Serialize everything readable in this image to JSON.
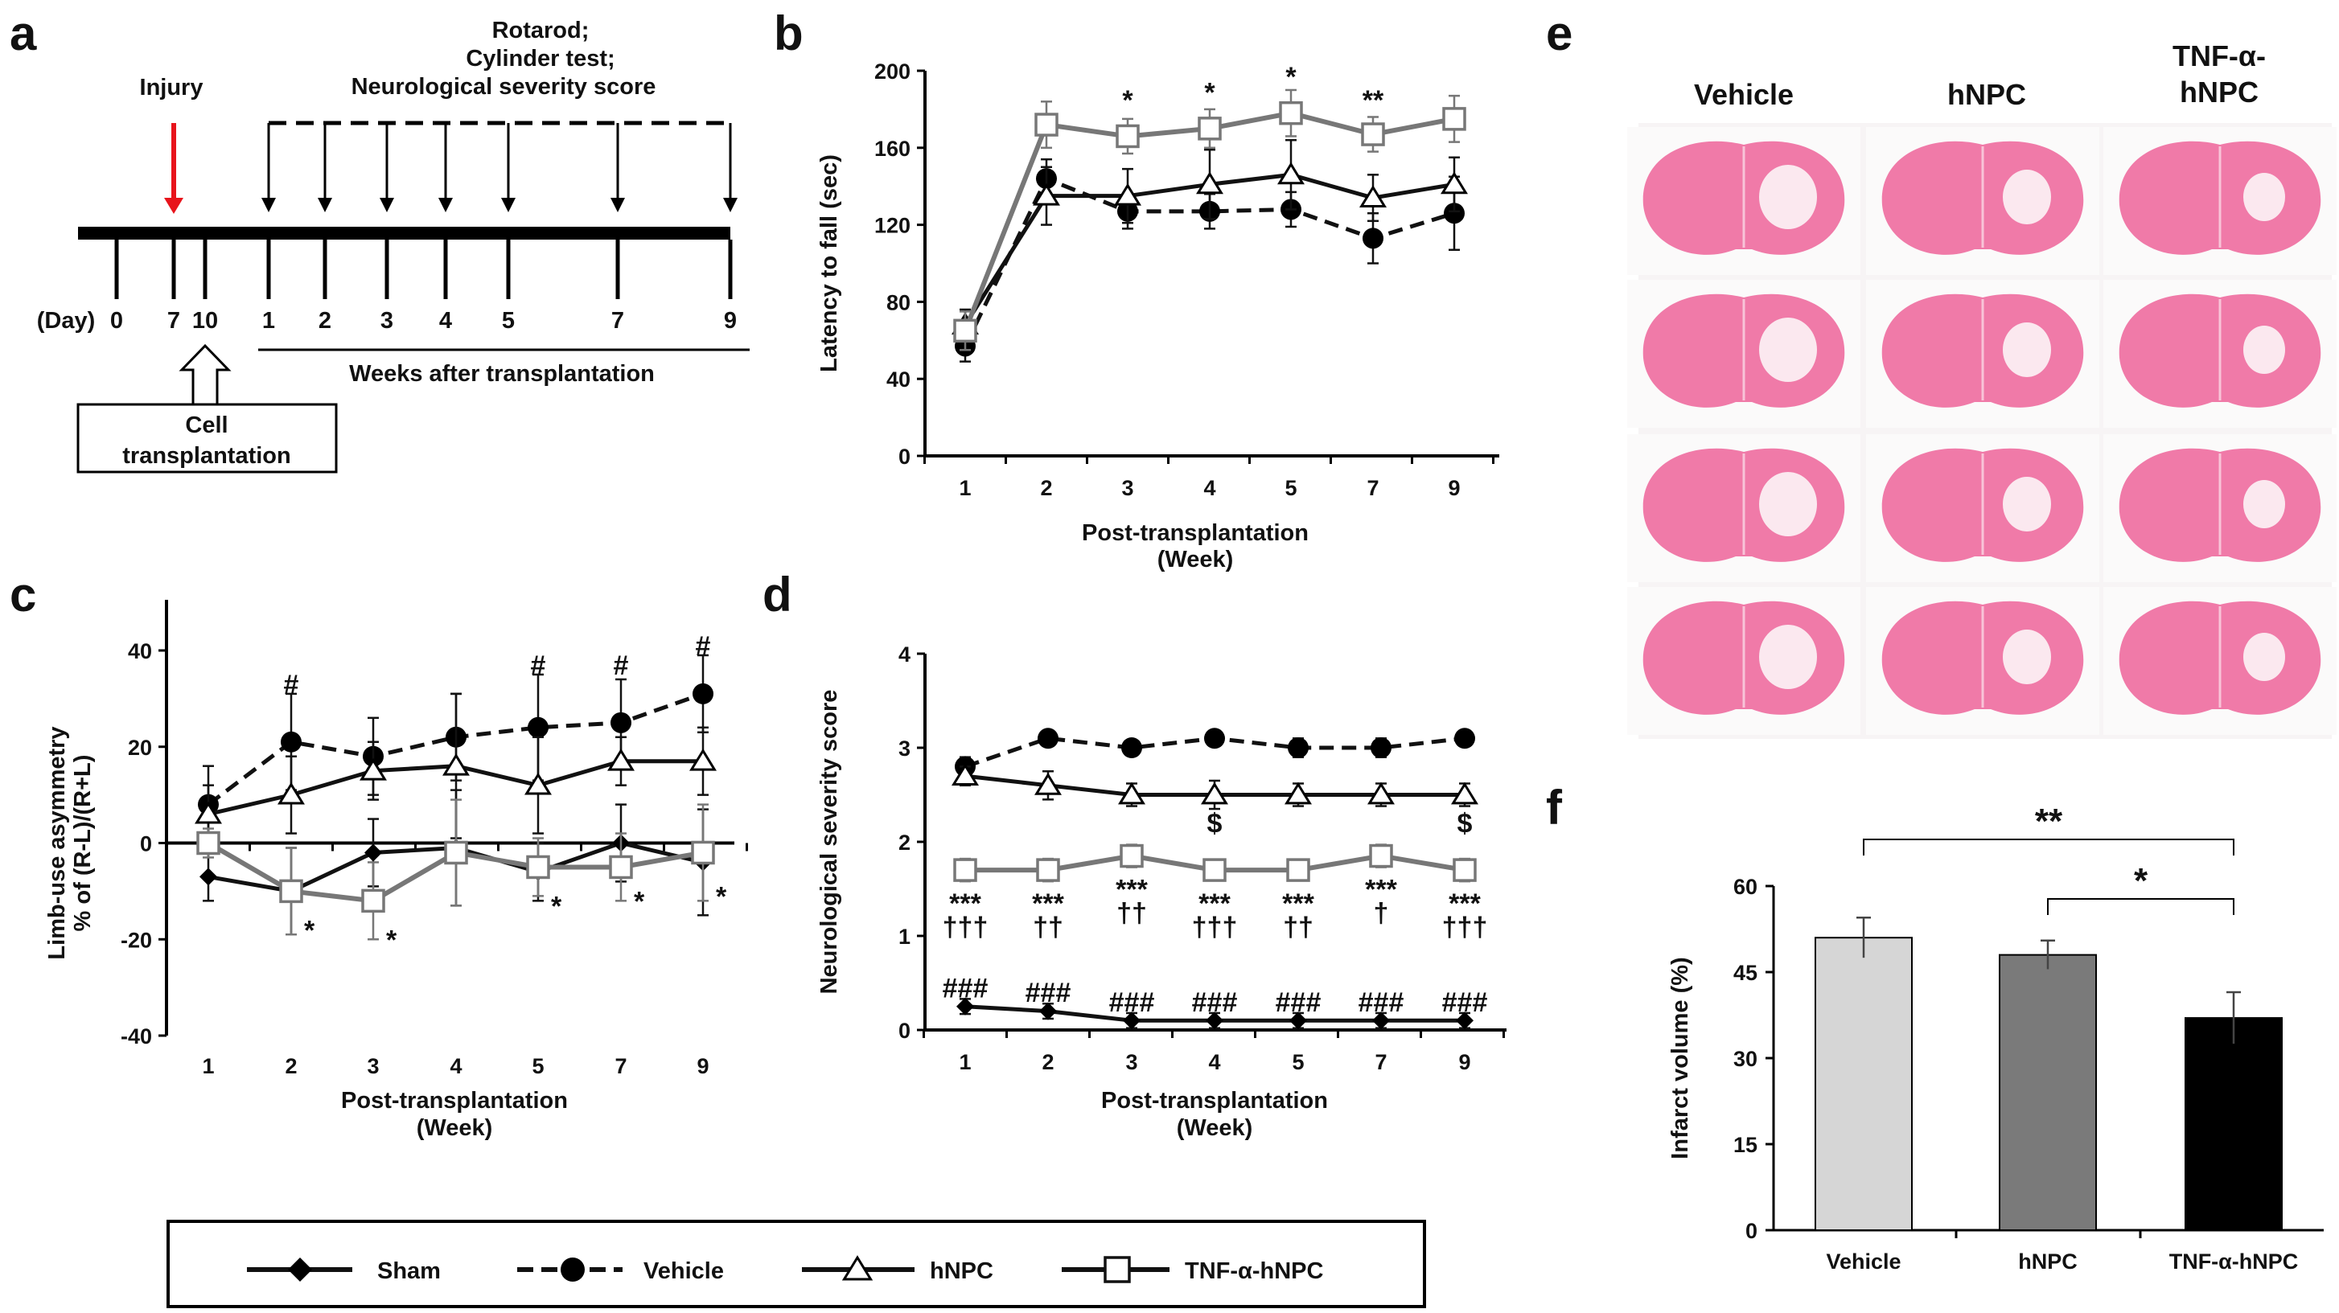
{
  "panel_labels": {
    "a": "a",
    "b": "b",
    "c": "c",
    "d": "d",
    "e": "e",
    "f": "f"
  },
  "timeline": {
    "injury": "Injury",
    "tests": [
      "Rotarod;",
      "Cylinder test;",
      "Neurological severity score"
    ],
    "day_label": "(Day)",
    "days": [
      "0",
      "7",
      "10"
    ],
    "weeks": [
      "1",
      "2",
      "3",
      "4",
      "5",
      "7",
      "9"
    ],
    "weeks_caption": "Weeks after transplantation",
    "cell_box": [
      "Cell",
      "transplantation"
    ],
    "colors": {
      "injury_arrow": "#e8141c"
    }
  },
  "legend": [
    {
      "name": "Sham",
      "marker": "diamond-filled",
      "dash": false,
      "color": "#111111"
    },
    {
      "name": "Vehicle",
      "marker": "circle-filled",
      "dash": true,
      "color": "#111111"
    },
    {
      "name": "hNPC",
      "marker": "triangle-open",
      "dash": false,
      "color": "#111111"
    },
    {
      "name": "TNF-α-hNPC",
      "marker": "square-open",
      "dash": false,
      "color": "#777777"
    }
  ],
  "histology": {
    "columns": [
      "Vehicle",
      "hNPC"
    ],
    "column3": [
      "TNF-α-",
      "hNPC"
    ],
    "rows": 4,
    "tissue_color": "#f07aa8"
  },
  "chart_data": [
    {
      "id": "b",
      "type": "line",
      "categories": [
        "1",
        "2",
        "3",
        "4",
        "5",
        "7",
        "9"
      ],
      "ylabel": "Latency to fall (sec)",
      "xlabel": [
        "Post-transplantation",
        "(Week)"
      ],
      "ylim": [
        0,
        200
      ],
      "yticks": [
        0,
        40,
        80,
        120,
        160,
        200
      ],
      "series": [
        {
          "name": "Vehicle",
          "values": [
            57,
            144,
            127,
            127,
            128,
            113,
            126
          ],
          "errors": [
            8,
            10,
            9,
            9,
            9,
            13,
            19
          ]
        },
        {
          "name": "hNPC",
          "values": [
            68,
            135,
            135,
            141,
            146,
            134,
            141
          ],
          "errors": [
            8,
            15,
            14,
            18,
            18,
            12,
            14
          ]
        },
        {
          "name": "TNF-α-hNPC",
          "values": [
            65,
            172,
            166,
            170,
            178,
            167,
            175
          ],
          "errors": [
            10,
            12,
            9,
            10,
            12,
            9,
            12
          ]
        }
      ],
      "annotations": [
        {
          "x": "3",
          "y": 185,
          "text": "*"
        },
        {
          "x": "4",
          "y": 189,
          "text": "*"
        },
        {
          "x": "5",
          "y": 197,
          "text": "*"
        },
        {
          "x": "7",
          "y": 185,
          "text": "**"
        }
      ]
    },
    {
      "id": "c",
      "type": "line",
      "categories": [
        "1",
        "2",
        "3",
        "4",
        "5",
        "7",
        "9"
      ],
      "ylabel": [
        "Limb-use asymmetry",
        "% of (R-L)/(R+L)"
      ],
      "xlabel": [
        "Post-transplantation",
        "(Week)"
      ],
      "ylim": [
        -40,
        40
      ],
      "yticks": [
        -40,
        -20,
        0,
        20,
        40
      ],
      "series": [
        {
          "name": "Sham",
          "values": [
            -7,
            -10,
            -2,
            -1,
            -6,
            0,
            -4
          ],
          "errors": [
            5,
            9,
            7,
            12,
            6,
            8,
            11
          ]
        },
        {
          "name": "Vehicle",
          "values": [
            8,
            21,
            18,
            22,
            24,
            25,
            31
          ],
          "errors": [
            8,
            10,
            8,
            9,
            11,
            9,
            8
          ]
        },
        {
          "name": "hNPC",
          "values": [
            6,
            10,
            15,
            16,
            12,
            17,
            17
          ],
          "errors": [
            6,
            8,
            6,
            15,
            10,
            5,
            7
          ]
        },
        {
          "name": "TNF-α-hNPC",
          "values": [
            0,
            -10,
            -12,
            -2,
            -5,
            -5,
            -2
          ],
          "errors": [
            3,
            9,
            8,
            11,
            6,
            7,
            10
          ]
        }
      ],
      "annotations": [
        {
          "x": "2",
          "y": 33,
          "text": "#"
        },
        {
          "x": "5",
          "y": 37,
          "text": "#"
        },
        {
          "x": "7",
          "y": 37,
          "text": "#"
        },
        {
          "x": "9",
          "y": 41,
          "text": "#"
        },
        {
          "x": "2",
          "y": -18,
          "text": "*",
          "dx": 0.22
        },
        {
          "x": "3",
          "y": -20,
          "text": "*",
          "dx": 0.22
        },
        {
          "x": "5",
          "y": -13,
          "text": "*",
          "dx": 0.22
        },
        {
          "x": "7",
          "y": -12,
          "text": "*",
          "dx": 0.22
        },
        {
          "x": "9",
          "y": -11,
          "text": "*",
          "dx": 0.22
        }
      ]
    },
    {
      "id": "d",
      "type": "line",
      "categories": [
        "1",
        "2",
        "3",
        "4",
        "5",
        "7",
        "9"
      ],
      "ylabel": "Neurological severity score",
      "xlabel": [
        "Post-transplantation",
        "(Week)"
      ],
      "ylim": [
        0,
        4
      ],
      "yticks": [
        0,
        1,
        2,
        3,
        4
      ],
      "series": [
        {
          "name": "Sham",
          "values": [
            0.25,
            0.2,
            0.1,
            0.1,
            0.1,
            0.1,
            0.1
          ],
          "errors": [
            0.08,
            0.08,
            0.08,
            0.08,
            0.08,
            0.08,
            0.08
          ]
        },
        {
          "name": "Vehicle",
          "values": [
            2.8,
            3.1,
            3.0,
            3.1,
            3.0,
            3.0,
            3.1
          ],
          "errors": [
            0.1,
            0.07,
            0.05,
            0.07,
            0.1,
            0.1,
            0.05
          ]
        },
        {
          "name": "hNPC",
          "values": [
            2.7,
            2.6,
            2.5,
            2.5,
            2.5,
            2.5,
            2.5
          ],
          "errors": [
            0.1,
            0.15,
            0.12,
            0.15,
            0.12,
            0.12,
            0.12
          ]
        },
        {
          "name": "TNF-α-hNPC",
          "values": [
            1.7,
            1.7,
            1.85,
            1.7,
            1.7,
            1.85,
            1.7
          ],
          "errors": [
            0.12,
            0.12,
            0.12,
            0.1,
            0.1,
            0.12,
            0.12
          ]
        }
      ],
      "annotations": [
        {
          "x": "1",
          "y": 1.35,
          "text": "***"
        },
        {
          "x": "2",
          "y": 1.35,
          "text": "***"
        },
        {
          "x": "3",
          "y": 1.5,
          "text": "***"
        },
        {
          "x": "4",
          "y": 1.35,
          "text": "***"
        },
        {
          "x": "5",
          "y": 1.35,
          "text": "***"
        },
        {
          "x": "7",
          "y": 1.5,
          "text": "***"
        },
        {
          "x": "9",
          "y": 1.35,
          "text": "***"
        },
        {
          "x": "1",
          "y": 1.1,
          "text": "†††"
        },
        {
          "x": "2",
          "y": 1.1,
          "text": "††"
        },
        {
          "x": "3",
          "y": 1.25,
          "text": "††"
        },
        {
          "x": "4",
          "y": 1.1,
          "text": "†††"
        },
        {
          "x": "5",
          "y": 1.1,
          "text": "††"
        },
        {
          "x": "7",
          "y": 1.25,
          "text": "†"
        },
        {
          "x": "9",
          "y": 1.1,
          "text": "†††"
        },
        {
          "x": "4",
          "y": 2.2,
          "text": "$"
        },
        {
          "x": "9",
          "y": 2.2,
          "text": "$"
        },
        {
          "x": "1",
          "y": 0.45,
          "text": "###"
        },
        {
          "x": "2",
          "y": 0.4,
          "text": "###"
        },
        {
          "x": "3",
          "y": 0.3,
          "text": "###"
        },
        {
          "x": "4",
          "y": 0.3,
          "text": "###"
        },
        {
          "x": "5",
          "y": 0.3,
          "text": "###"
        },
        {
          "x": "7",
          "y": 0.3,
          "text": "###"
        },
        {
          "x": "9",
          "y": 0.3,
          "text": "###"
        }
      ]
    },
    {
      "id": "f",
      "type": "bar",
      "categories": [
        "Vehicle",
        "hNPC",
        "TNF-α-hNPC"
      ],
      "values": [
        51,
        48,
        37
      ],
      "errors": [
        3.5,
        2.5,
        4.5
      ],
      "colors": [
        "#d6d6d6",
        "#7a7a7a",
        "#000000"
      ],
      "ylabel": "Infarct volume (%)",
      "ylim": [
        0,
        60
      ],
      "yticks": [
        0,
        15,
        30,
        45,
        60
      ],
      "brackets": [
        {
          "from": "Vehicle",
          "to": "TNF-α-hNPC",
          "text": "**"
        },
        {
          "from": "hNPC",
          "to": "TNF-α-hNPC",
          "text": "*"
        }
      ]
    }
  ]
}
